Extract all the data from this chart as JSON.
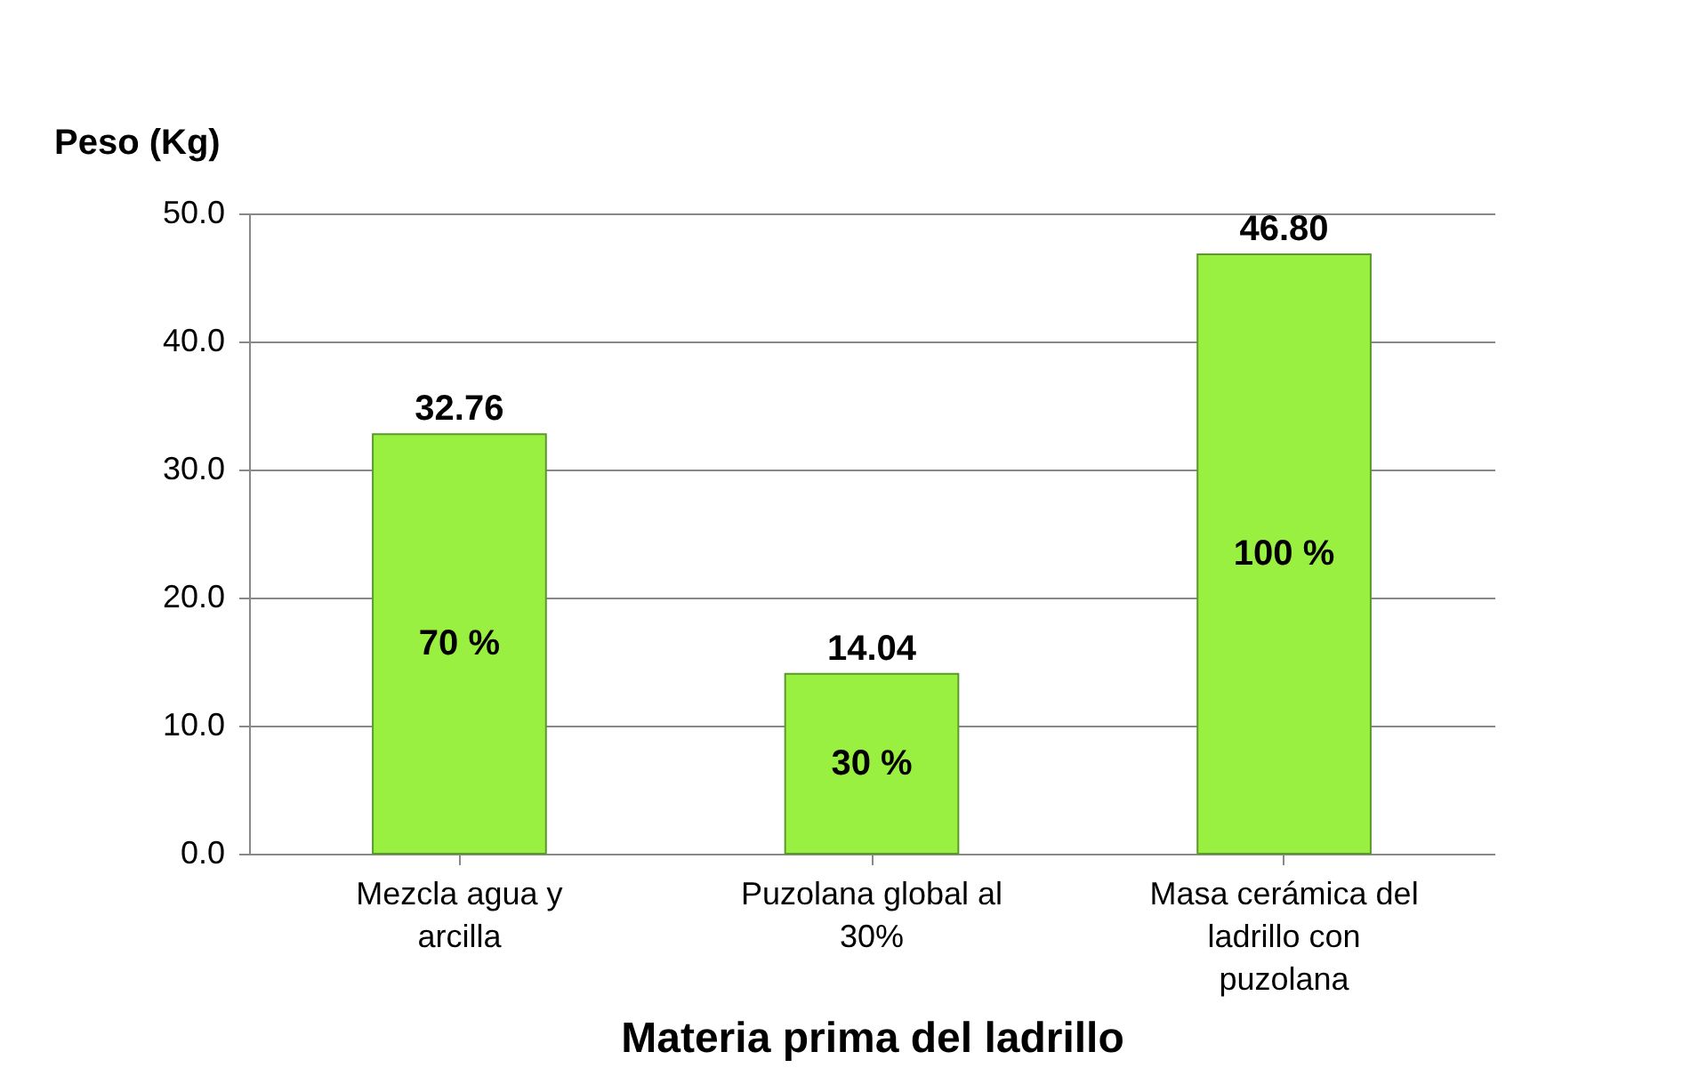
{
  "chart_data": {
    "type": "bar",
    "xlabel": "Materia prima del ladrillo",
    "ylabel": "Peso (Kg)",
    "categories": [
      "Mezcla agua y arcilla",
      "Puzolana global al 30%",
      "Masa cerámica del ladrillo con puzolana"
    ],
    "values": [
      32.76,
      14.04,
      46.8
    ],
    "value_labels": [
      "32.76",
      "14.04",
      "46.80"
    ],
    "color": "#99f040",
    "ylim": [
      0,
      50
    ],
    "yticks": [
      {
        "value": 0,
        "label": "0.0"
      },
      {
        "value": 10,
        "label": "10.0"
      },
      {
        "value": 20,
        "label": "20.0"
      },
      {
        "value": 30,
        "label": "30.0"
      },
      {
        "value": 40,
        "label": "40.0"
      },
      {
        "value": 50,
        "label": "50.0"
      }
    ],
    "grid": "y",
    "annotations": [
      "70 %",
      "30 %",
      "100 %"
    ]
  }
}
